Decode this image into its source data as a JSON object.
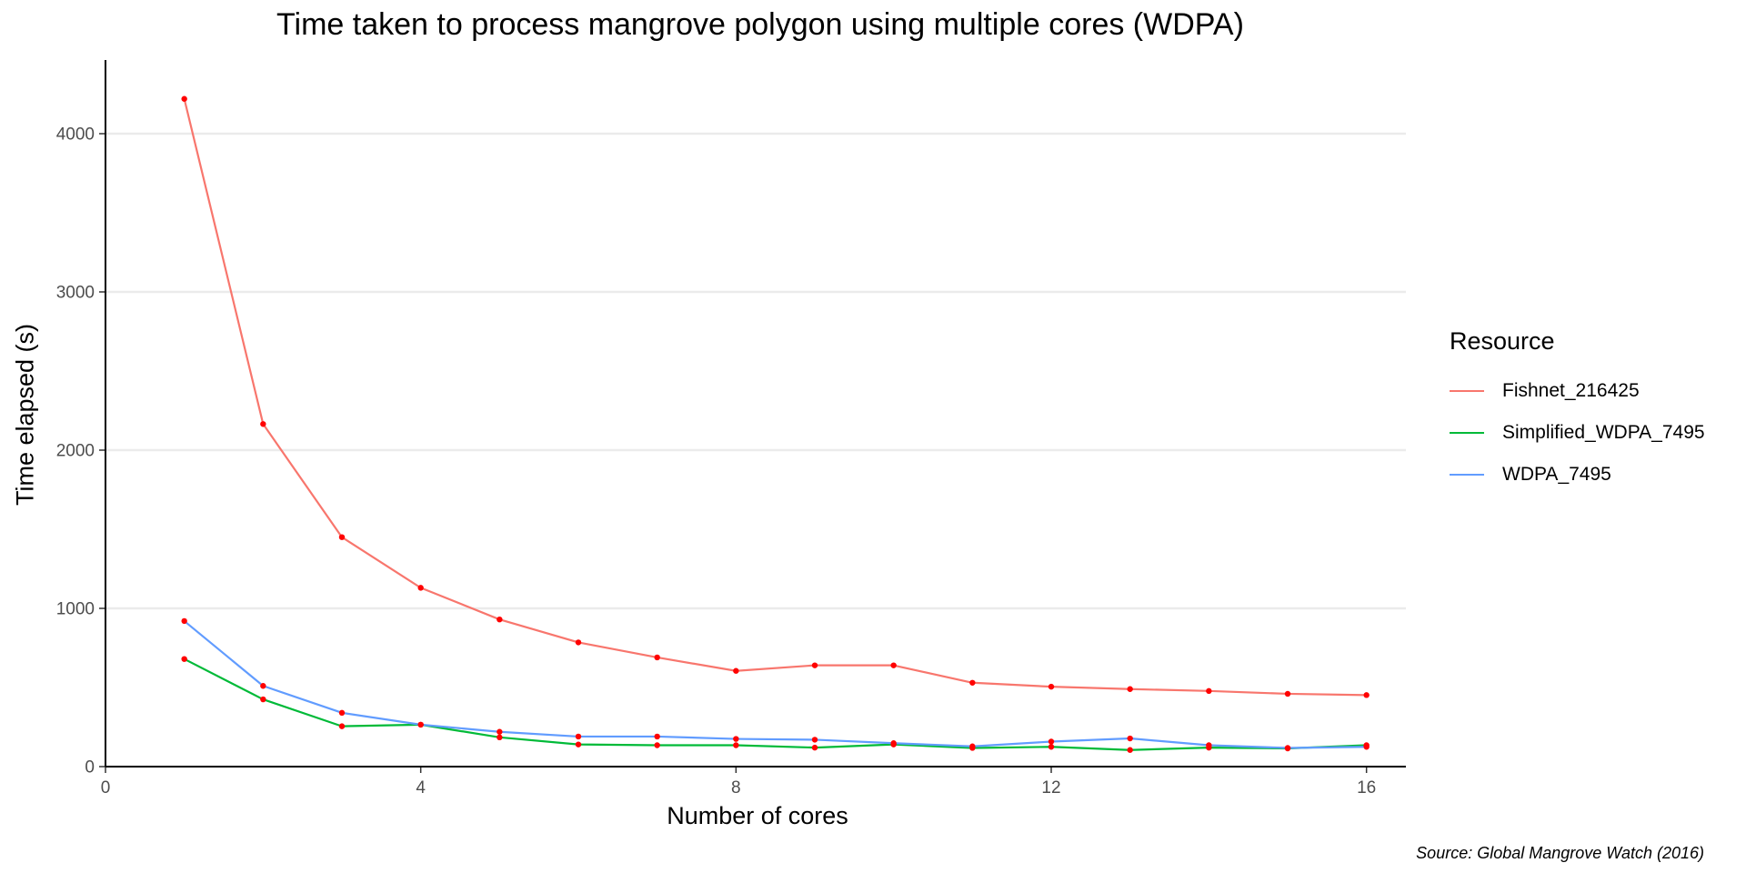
{
  "chart_data": {
    "type": "line",
    "title": "Time taken to process mangrove polygon using multiple cores (WDPA)",
    "xlabel": "Number of cores",
    "ylabel": "Time elapsed (s)",
    "caption": "Source: Global Mangrove Watch (2016)",
    "x": [
      1,
      2,
      3,
      4,
      5,
      6,
      7,
      8,
      9,
      10,
      11,
      12,
      13,
      14,
      15,
      16
    ],
    "xlim": [
      0,
      16.5
    ],
    "ylim": [
      0,
      4500
    ],
    "xticks": [
      0,
      4,
      8,
      12,
      16
    ],
    "yticks": [
      0,
      1000,
      2000,
      3000,
      4000
    ],
    "grid": "horizontal major",
    "legend": {
      "title": "Resource",
      "position": "right"
    },
    "point_color": "#ff0000",
    "series": [
      {
        "name": "Fishnet_216425",
        "color": "#F8766D",
        "values": [
          4220,
          2165,
          1450,
          1130,
          930,
          785,
          690,
          605,
          640,
          640,
          530,
          505,
          490,
          478,
          460,
          452
        ]
      },
      {
        "name": "Simplified_WDPA_7495",
        "color": "#00BA38",
        "values": [
          680,
          425,
          255,
          265,
          185,
          140,
          135,
          135,
          120,
          140,
          118,
          125,
          105,
          120,
          115,
          135
        ]
      },
      {
        "name": "WDPA_7495",
        "color": "#619CFF",
        "values": [
          920,
          510,
          340,
          265,
          220,
          190,
          190,
          175,
          170,
          148,
          128,
          158,
          178,
          135,
          118,
          125
        ]
      }
    ]
  }
}
